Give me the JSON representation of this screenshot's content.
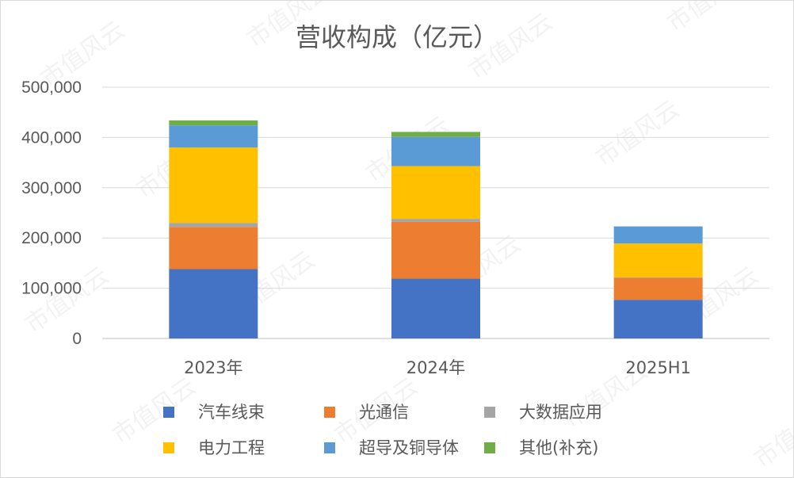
{
  "chart_data": {
    "type": "bar",
    "stacked": true,
    "title": "营收构成（亿元）",
    "categories": [
      "2023年",
      "2024年",
      "2025H1"
    ],
    "ylim": [
      0,
      500000
    ],
    "yticks": [
      0,
      100000,
      200000,
      300000,
      400000,
      500000
    ],
    "ytick_labels": [
      "0",
      "100,000",
      "200,000",
      "300,000",
      "400,000",
      "500,000"
    ],
    "grid": true,
    "legend": "bottom",
    "series": [
      {
        "name": "汽车线束",
        "color": "#4472C4",
        "values": [
          138000,
          119000,
          77000
        ]
      },
      {
        "name": "光通信",
        "color": "#ED7D31",
        "values": [
          84000,
          113000,
          44000
        ]
      },
      {
        "name": "大数据应用",
        "color": "#A5A5A5",
        "values": [
          8000,
          6000,
          1000
        ]
      },
      {
        "name": "电力工程",
        "color": "#FFC000",
        "values": [
          150000,
          105000,
          67000
        ]
      },
      {
        "name": "超导及铜导体",
        "color": "#5B9BD5",
        "values": [
          44000,
          58000,
          34000
        ]
      },
      {
        "name": "其他(补充)",
        "color": "#70AD47",
        "values": [
          10000,
          10000,
          0
        ]
      }
    ]
  },
  "watermark": "市值风云"
}
